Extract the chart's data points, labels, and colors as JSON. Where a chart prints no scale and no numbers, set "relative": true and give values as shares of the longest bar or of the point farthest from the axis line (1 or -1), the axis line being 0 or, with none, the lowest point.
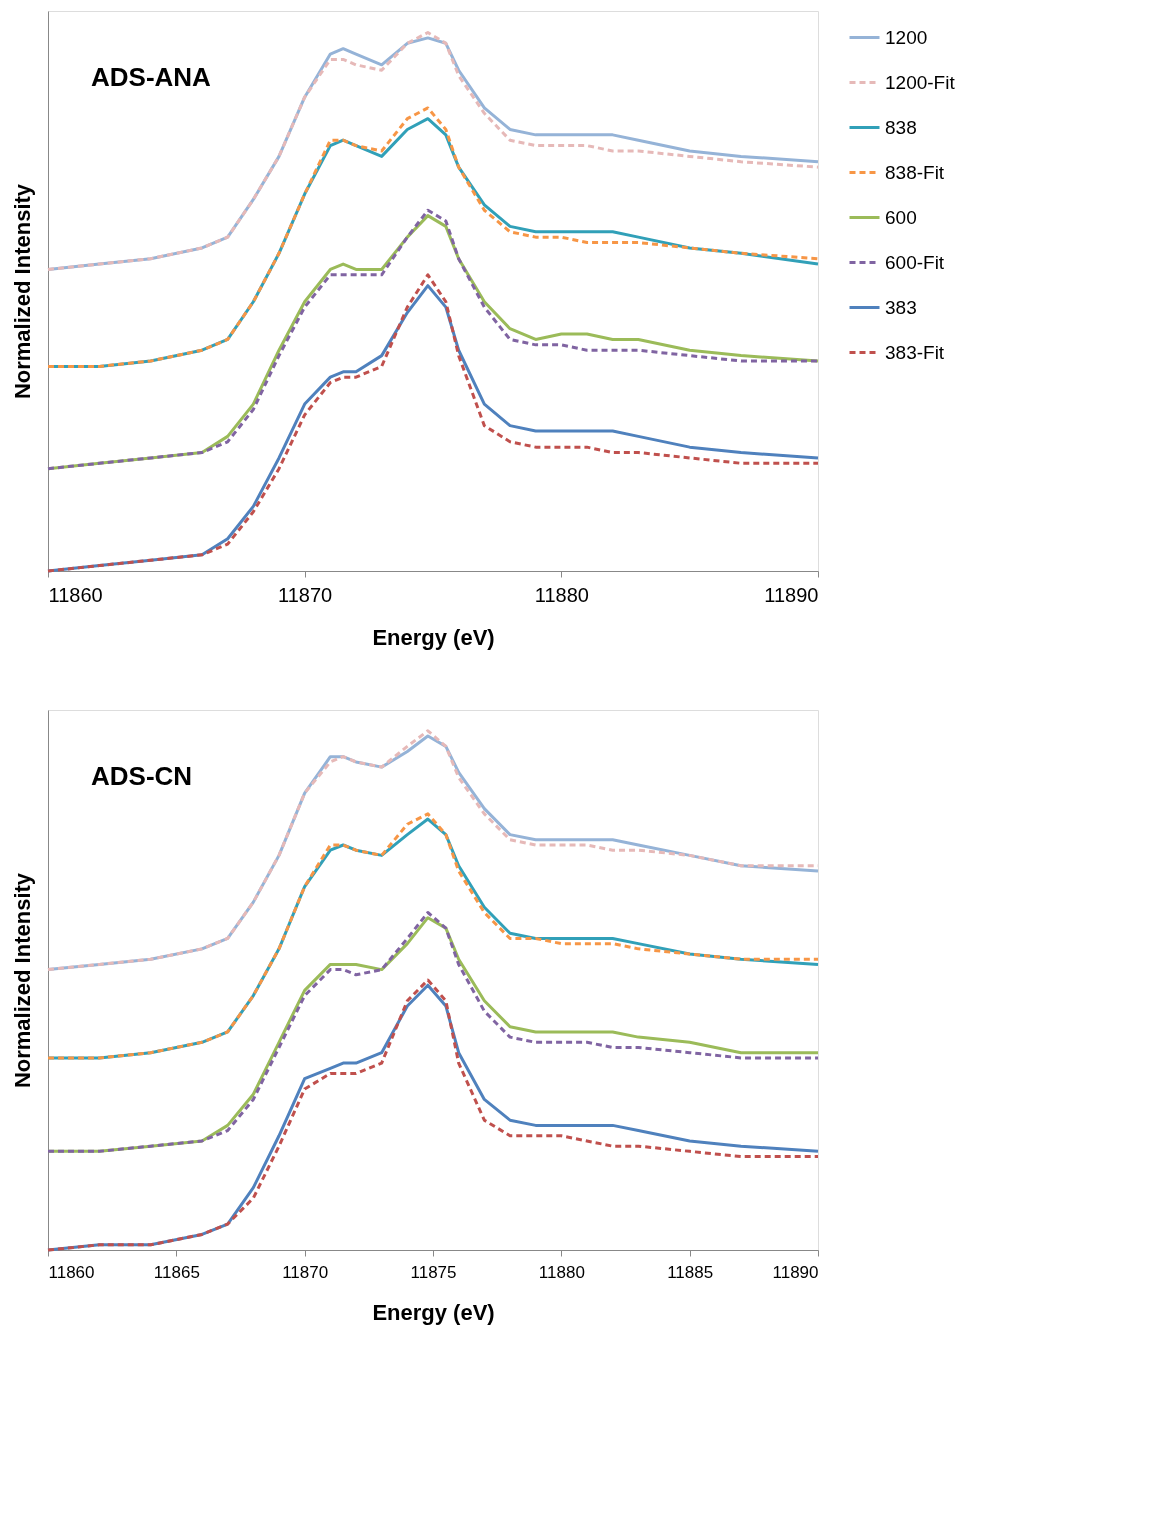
{
  "chart_data": [
    {
      "type": "line",
      "title": "ADS-ANA",
      "xlabel": "Energy (eV)",
      "ylabel": "Normalized Intensity",
      "relative": true,
      "legend": "right",
      "grid": false,
      "tick_labels": "x",
      "xlim": [
        11860,
        11890
      ],
      "xticks": [
        11860,
        11870,
        11880,
        11890
      ],
      "x": [
        11860,
        11862,
        11864,
        11866,
        11867,
        11868,
        11869,
        11870,
        11871,
        11871.5,
        11872,
        11873,
        11874,
        11874.8,
        11875.5,
        11876,
        11877,
        11878,
        11879,
        11880,
        11881,
        11882,
        11883,
        11885,
        11887,
        11890
      ],
      "series": [
        {
          "name": "1200",
          "color": "#95b3d7",
          "line_style": "solid",
          "values": [
            0.56,
            0.57,
            0.58,
            0.6,
            0.62,
            0.69,
            0.77,
            0.88,
            0.96,
            0.97,
            0.96,
            0.94,
            0.98,
            0.99,
            0.98,
            0.93,
            0.86,
            0.82,
            0.81,
            0.81,
            0.81,
            0.81,
            0.8,
            0.78,
            0.77,
            0.76
          ]
        },
        {
          "name": "1200-Fit",
          "color": "#e6b9b8",
          "line_style": "dashed",
          "values": [
            0.56,
            0.57,
            0.58,
            0.6,
            0.62,
            0.69,
            0.77,
            0.88,
            0.95,
            0.95,
            0.94,
            0.93,
            0.98,
            1.0,
            0.98,
            0.92,
            0.85,
            0.8,
            0.79,
            0.79,
            0.79,
            0.78,
            0.78,
            0.77,
            0.76,
            0.75
          ]
        },
        {
          "name": "838",
          "color": "#31a0b8",
          "line_style": "solid",
          "values": [
            0.38,
            0.38,
            0.39,
            0.41,
            0.43,
            0.5,
            0.59,
            0.7,
            0.79,
            0.8,
            0.79,
            0.77,
            0.82,
            0.84,
            0.81,
            0.75,
            0.68,
            0.64,
            0.63,
            0.63,
            0.63,
            0.63,
            0.62,
            0.6,
            0.59,
            0.57
          ]
        },
        {
          "name": "838-Fit",
          "color": "#f79646",
          "line_style": "dashed",
          "values": [
            0.38,
            0.38,
            0.39,
            0.41,
            0.43,
            0.5,
            0.59,
            0.7,
            0.8,
            0.8,
            0.79,
            0.78,
            0.84,
            0.86,
            0.82,
            0.75,
            0.67,
            0.63,
            0.62,
            0.62,
            0.61,
            0.61,
            0.61,
            0.6,
            0.59,
            0.58
          ]
        },
        {
          "name": "600",
          "color": "#9bbb59",
          "line_style": "solid",
          "values": [
            0.19,
            0.2,
            0.21,
            0.22,
            0.25,
            0.31,
            0.41,
            0.5,
            0.56,
            0.57,
            0.56,
            0.56,
            0.62,
            0.66,
            0.64,
            0.58,
            0.5,
            0.45,
            0.43,
            0.44,
            0.44,
            0.43,
            0.43,
            0.41,
            0.4,
            0.39
          ]
        },
        {
          "name": "600-Fit",
          "color": "#8064a2",
          "line_style": "dashed",
          "values": [
            0.19,
            0.2,
            0.21,
            0.22,
            0.24,
            0.3,
            0.4,
            0.49,
            0.55,
            0.55,
            0.55,
            0.55,
            0.62,
            0.67,
            0.65,
            0.58,
            0.49,
            0.43,
            0.42,
            0.42,
            0.41,
            0.41,
            0.41,
            0.4,
            0.39,
            0.39
          ]
        },
        {
          "name": "383",
          "color": "#4f81bd",
          "line_style": "solid",
          "values": [
            0.0,
            0.01,
            0.02,
            0.03,
            0.06,
            0.12,
            0.21,
            0.31,
            0.36,
            0.37,
            0.37,
            0.4,
            0.48,
            0.53,
            0.49,
            0.41,
            0.31,
            0.27,
            0.26,
            0.26,
            0.26,
            0.26,
            0.25,
            0.23,
            0.22,
            0.21
          ]
        },
        {
          "name": "383-Fit",
          "color": "#c0504d",
          "line_style": "dashed",
          "values": [
            0.0,
            0.01,
            0.02,
            0.03,
            0.05,
            0.11,
            0.19,
            0.29,
            0.35,
            0.36,
            0.36,
            0.38,
            0.49,
            0.55,
            0.5,
            0.4,
            0.27,
            0.24,
            0.23,
            0.23,
            0.23,
            0.22,
            0.22,
            0.21,
            0.2,
            0.2
          ]
        }
      ]
    },
    {
      "type": "line",
      "title": "ADS-CN",
      "xlabel": "Energy (eV)",
      "ylabel": "Normalized Intensity",
      "relative": true,
      "legend": "right",
      "grid": false,
      "tick_labels": "x",
      "xlim": [
        11860,
        11890
      ],
      "xticks": [
        11860,
        11865,
        11870,
        11875,
        11880,
        11885,
        11890
      ],
      "x": [
        11860,
        11862,
        11864,
        11866,
        11867,
        11868,
        11869,
        11870,
        11871,
        11871.5,
        11872,
        11873,
        11874,
        11874.8,
        11875.5,
        11876,
        11877,
        11878,
        11879,
        11880,
        11881,
        11882,
        11883,
        11885,
        11887,
        11890
      ],
      "series": [
        {
          "name": "1200",
          "color": "#95b3d7",
          "line_style": "solid",
          "values": [
            0.54,
            0.55,
            0.56,
            0.58,
            0.6,
            0.67,
            0.76,
            0.88,
            0.95,
            0.95,
            0.94,
            0.93,
            0.96,
            0.99,
            0.97,
            0.92,
            0.85,
            0.8,
            0.79,
            0.79,
            0.79,
            0.79,
            0.78,
            0.76,
            0.74,
            0.73
          ]
        },
        {
          "name": "1200-Fit",
          "color": "#e6b9b8",
          "line_style": "dashed",
          "values": [
            0.54,
            0.55,
            0.56,
            0.58,
            0.6,
            0.67,
            0.76,
            0.88,
            0.94,
            0.95,
            0.94,
            0.93,
            0.97,
            1.0,
            0.97,
            0.91,
            0.84,
            0.79,
            0.78,
            0.78,
            0.78,
            0.77,
            0.77,
            0.76,
            0.74,
            0.74
          ]
        },
        {
          "name": "838",
          "color": "#31a0b8",
          "line_style": "solid",
          "values": [
            0.37,
            0.37,
            0.38,
            0.4,
            0.42,
            0.49,
            0.58,
            0.7,
            0.77,
            0.78,
            0.77,
            0.76,
            0.8,
            0.83,
            0.8,
            0.74,
            0.66,
            0.61,
            0.6,
            0.6,
            0.6,
            0.6,
            0.59,
            0.57,
            0.56,
            0.55
          ]
        },
        {
          "name": "838-Fit",
          "color": "#f79646",
          "line_style": "dashed",
          "values": [
            0.37,
            0.37,
            0.38,
            0.4,
            0.42,
            0.49,
            0.58,
            0.7,
            0.78,
            0.78,
            0.77,
            0.76,
            0.82,
            0.84,
            0.8,
            0.73,
            0.65,
            0.6,
            0.6,
            0.59,
            0.59,
            0.59,
            0.58,
            0.57,
            0.56,
            0.56
          ]
        },
        {
          "name": "600",
          "color": "#9bbb59",
          "line_style": "solid",
          "values": [
            0.19,
            0.19,
            0.2,
            0.21,
            0.24,
            0.3,
            0.4,
            0.5,
            0.55,
            0.55,
            0.55,
            0.54,
            0.59,
            0.64,
            0.62,
            0.56,
            0.48,
            0.43,
            0.42,
            0.42,
            0.42,
            0.42,
            0.41,
            0.4,
            0.38,
            0.38
          ]
        },
        {
          "name": "600-Fit",
          "color": "#8064a2",
          "line_style": "dashed",
          "values": [
            0.19,
            0.19,
            0.2,
            0.21,
            0.23,
            0.29,
            0.39,
            0.49,
            0.54,
            0.54,
            0.53,
            0.54,
            0.6,
            0.65,
            0.62,
            0.55,
            0.46,
            0.41,
            0.4,
            0.4,
            0.4,
            0.39,
            0.39,
            0.38,
            0.37,
            0.37
          ]
        },
        {
          "name": "383",
          "color": "#4f81bd",
          "line_style": "solid",
          "values": [
            0.0,
            0.01,
            0.01,
            0.03,
            0.05,
            0.12,
            0.22,
            0.33,
            0.35,
            0.36,
            0.36,
            0.38,
            0.47,
            0.51,
            0.47,
            0.38,
            0.29,
            0.25,
            0.24,
            0.24,
            0.24,
            0.24,
            0.23,
            0.21,
            0.2,
            0.19
          ]
        },
        {
          "name": "383-Fit",
          "color": "#c0504d",
          "line_style": "dashed",
          "values": [
            0.0,
            0.01,
            0.01,
            0.03,
            0.05,
            0.1,
            0.2,
            0.31,
            0.34,
            0.34,
            0.34,
            0.36,
            0.48,
            0.52,
            0.48,
            0.36,
            0.25,
            0.22,
            0.22,
            0.22,
            0.21,
            0.2,
            0.2,
            0.19,
            0.18,
            0.18
          ]
        }
      ]
    }
  ]
}
